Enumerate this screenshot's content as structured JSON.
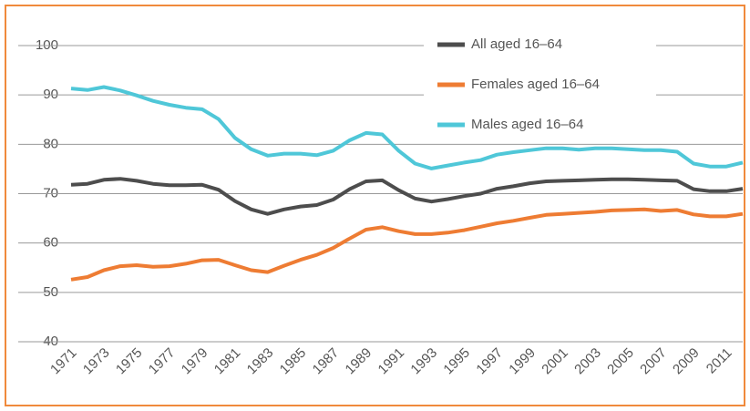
{
  "chart_data": {
    "type": "line",
    "x": [
      1971,
      1972,
      1973,
      1974,
      1975,
      1976,
      1977,
      1978,
      1979,
      1980,
      1981,
      1982,
      1983,
      1984,
      1985,
      1986,
      1987,
      1988,
      1989,
      1990,
      1991,
      1992,
      1993,
      1994,
      1995,
      1996,
      1997,
      1998,
      1999,
      2000,
      2001,
      2002,
      2003,
      2004,
      2005,
      2006,
      2007,
      2008,
      2009,
      2010,
      2011,
      2012
    ],
    "xlim": [
      1971,
      2012
    ],
    "xticks": [
      1971,
      1973,
      1975,
      1977,
      1979,
      1981,
      1983,
      1985,
      1987,
      1989,
      1991,
      1993,
      1995,
      1997,
      1999,
      2001,
      2003,
      2005,
      2007,
      2009,
      2011
    ],
    "ylim": [
      40,
      100
    ],
    "yticks": [
      40,
      50,
      60,
      70,
      80,
      90,
      100
    ],
    "grid": true,
    "legend": "top",
    "series": [
      {
        "name": "All aged 16–64",
        "color": "#4d4d4d",
        "values": [
          71.8,
          72.0,
          72.8,
          73.0,
          72.6,
          72.0,
          71.7,
          71.7,
          71.8,
          70.8,
          68.5,
          66.8,
          65.9,
          66.8,
          67.4,
          67.7,
          68.8,
          70.9,
          72.5,
          72.7,
          70.7,
          69.0,
          68.4,
          68.9,
          69.5,
          70.0,
          71.0,
          71.5,
          72.1,
          72.5,
          72.6,
          72.7,
          72.8,
          72.9,
          72.9,
          72.8,
          72.7,
          72.6,
          70.9,
          70.5,
          70.5,
          71.0
        ]
      },
      {
        "name": "Females aged 16–64",
        "color": "#ee7c33",
        "values": [
          52.6,
          53.1,
          54.5,
          55.3,
          55.5,
          55.2,
          55.3,
          55.8,
          56.5,
          56.6,
          55.5,
          54.5,
          54.1,
          55.4,
          56.6,
          57.6,
          59.0,
          60.9,
          62.7,
          63.2,
          62.4,
          61.8,
          61.8,
          62.1,
          62.6,
          63.3,
          64.0,
          64.5,
          65.1,
          65.7,
          65.9,
          66.1,
          66.3,
          66.6,
          66.7,
          66.8,
          66.5,
          66.7,
          65.8,
          65.4,
          65.4,
          65.9
        ]
      },
      {
        "name": "Males aged 16–64",
        "color": "#4fc7d8",
        "values": [
          91.3,
          91.0,
          91.6,
          90.9,
          89.9,
          88.8,
          88.0,
          87.4,
          87.1,
          85.1,
          81.3,
          79.0,
          77.7,
          78.1,
          78.1,
          77.8,
          78.7,
          80.8,
          82.3,
          82.0,
          78.7,
          76.1,
          75.1,
          75.7,
          76.3,
          76.8,
          77.9,
          78.4,
          78.8,
          79.2,
          79.2,
          78.9,
          79.2,
          79.2,
          79.0,
          78.8,
          78.8,
          78.5,
          76.1,
          75.5,
          75.5,
          76.3
        ]
      }
    ]
  }
}
